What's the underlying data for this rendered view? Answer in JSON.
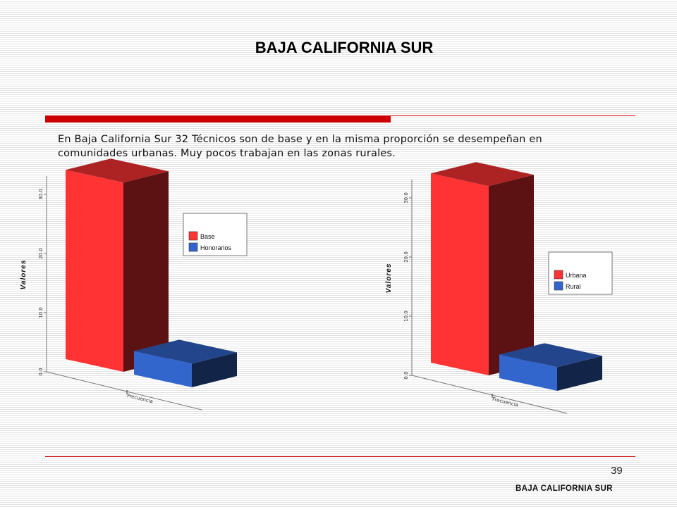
{
  "page": {
    "title": "BAJA CALIFORNIA SUR",
    "text": "En Baja California Sur 32 Técnicos son de base y en la misma proporción se desempeñan en comunidades urbanas. Muy pocos trabajan en las zonas rurales.",
    "page_number": "39",
    "footer": "BAJA CALIFORNIA SUR",
    "accent_color": "#cc0000"
  },
  "chart_data": [
    {
      "type": "bar",
      "categories": [
        "Frecuencia"
      ],
      "series": [
        {
          "name": "Base",
          "values": [
            32
          ],
          "color": "#ff3333"
        },
        {
          "name": "Honorarios",
          "values": [
            4
          ],
          "color": "#3366cc"
        }
      ],
      "xlabel": "",
      "ylabel": "Valores",
      "yticks": [
        "0.0",
        "10.0",
        "20.0",
        "30.0"
      ],
      "ylim": [
        0,
        32
      ],
      "legend": "right",
      "grid": false
    },
    {
      "type": "bar",
      "categories": [
        "Frecuencia"
      ],
      "series": [
        {
          "name": "Urbana",
          "values": [
            32
          ],
          "color": "#ff3333"
        },
        {
          "name": "Rural",
          "values": [
            4
          ],
          "color": "#3366cc"
        }
      ],
      "xlabel": "",
      "ylabel": "Valores",
      "yticks": [
        "0.0",
        "10.0",
        "20.0",
        "30.0"
      ],
      "ylim": [
        0,
        32
      ],
      "legend": "right",
      "grid": false
    }
  ]
}
